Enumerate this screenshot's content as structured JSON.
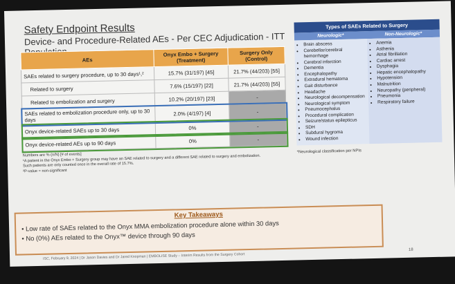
{
  "title": "Safety Endpoint Results",
  "subtitle": "Device- and Procedure-Related AEs - Per CEC Adjudication - ITT Population",
  "table": {
    "headers": [
      "AEs",
      "Onyx Embo + Surgery (Treatment)",
      "Surgery Only (Control)"
    ],
    "rows": [
      [
        "SAEs related to surgery procedure, up to 30 days¹,²",
        "15.7% (31/197) [45]",
        "21.7% (44/203) [55]"
      ],
      [
        "Related to surgery",
        "7.6% (15/197) [22]",
        "21.7% (44/203) [55]"
      ],
      [
        "Related to embolization and surgery",
        "10.2% (20/197) [23]",
        "-"
      ],
      [
        "SAEs related to embolization procedure only, up to 30 days",
        "2.0% (4/197) [4]",
        "-"
      ],
      [
        "Onyx device-related SAEs up to 30 days",
        "0%",
        "-"
      ],
      [
        "Onyx device-related AEs up to 90 days",
        "0%",
        "-"
      ]
    ]
  },
  "notes": [
    "Numbers are % (n/N) [# of events]",
    "¹A patient in the Onyx Embo + Surgery group may have an SAE related to surgery and a different SAE related to surgery and embolization.",
    "Such patients are only counted once in the overall rate of 15.7%.",
    "²P-value = non-significant"
  ],
  "sae_types": {
    "title": "Types of SAEs Related to Surgery",
    "neurologic_header": "Neurologic*",
    "nonneurologic_header": "Non-Neurologic*",
    "neurologic": [
      "Brain abscess",
      "Cerebellar/cerebral hemorrhage",
      "Cerebral infarction",
      "Dementia",
      "Encephalopathy",
      "Extradural hematoma",
      "Gait disturbance",
      "Headache",
      "Neurological decompensation",
      "Neurological symptom",
      "Pneumocephalus",
      "Procedural complication",
      "Seizure/status epilepticus",
      "SDH",
      "Subdural hygroma",
      "Wound infection"
    ],
    "nonneurologic": [
      "Anemia",
      "Asthenia",
      "Atrial fibrillation",
      "Cardiac arrest",
      "Dysphagia",
      "Hepatic encephalopathy",
      "Hypotension",
      "Malnutrition",
      "Neuropathy (peripheral)",
      "Pneumonia",
      "Respiratory failure"
    ],
    "footnote": "*Neurological classification per NPIs"
  },
  "takeaways": {
    "title": "Key Takeaways",
    "items": [
      "Low rate of SAEs related to the Onyx MMA embolization procedure alone within 30 days",
      "No (0%) AEs related to the Onyx™ device through 90 days"
    ]
  },
  "footer": "ISC, February 9, 2024  |  Dr Jason Davies and Dr Jared Knopman  |  EMBOLISE Study – Interim Results from the Surgery Cohort",
  "page_number": "18"
}
